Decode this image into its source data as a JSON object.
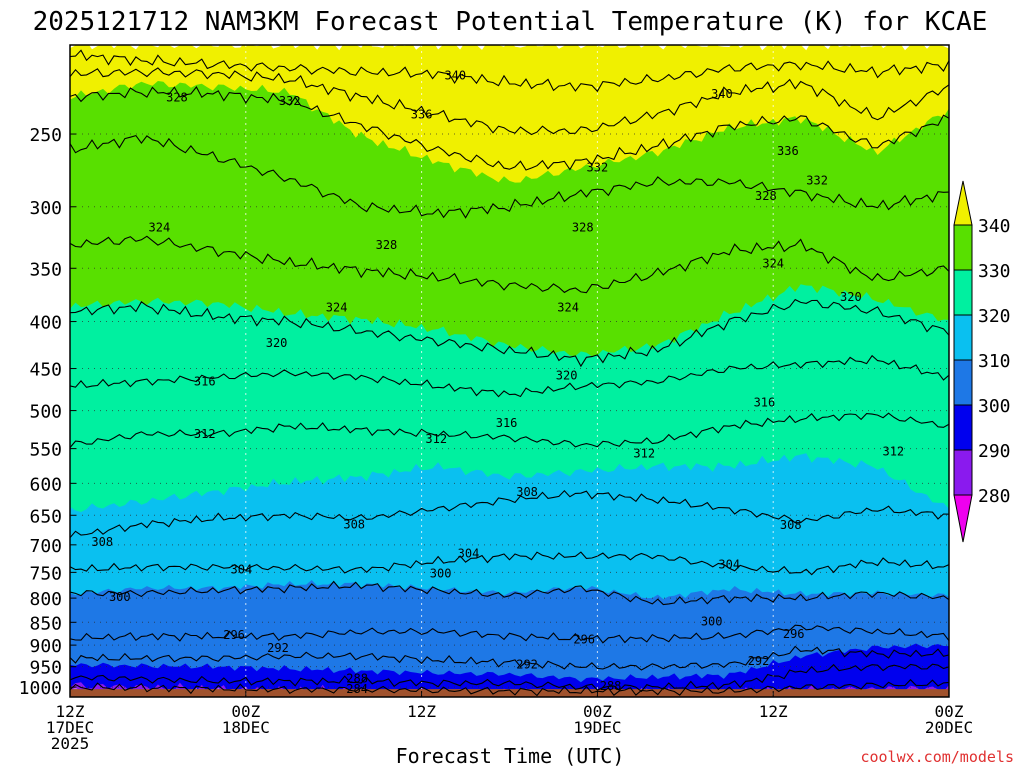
{
  "chart_data": {
    "type": "contour",
    "title": "2025121712 NAM3KM Forecast Potential Temperature (K) for KCAE",
    "xlabel": "Forecast Time (UTC)",
    "ylabel": "",
    "watermark": "coolwx.com/models",
    "x_hours_range": [
      0,
      60
    ],
    "x_ticks": [
      {
        "hour": 0,
        "lines": [
          "12Z",
          "17DEC",
          "2025"
        ]
      },
      {
        "hour": 12,
        "lines": [
          "00Z",
          "18DEC"
        ]
      },
      {
        "hour": 24,
        "lines": [
          "12Z"
        ]
      },
      {
        "hour": 36,
        "lines": [
          "00Z",
          "19DEC"
        ]
      },
      {
        "hour": 48,
        "lines": [
          "12Z"
        ]
      },
      {
        "hour": 60,
        "lines": [
          "00Z",
          "20DEC"
        ]
      }
    ],
    "y_pressure_levels_hpa": [
      250,
      300,
      350,
      400,
      450,
      500,
      550,
      600,
      650,
      700,
      750,
      800,
      850,
      900,
      950,
      1000
    ],
    "y_range_hpa": [
      200,
      1025
    ],
    "colorbar": {
      "levels": [
        280,
        290,
        300,
        310,
        320,
        330,
        340
      ],
      "colors": [
        "#ee00ee",
        "#8a1aee",
        "#0000ee",
        "#1e78e6",
        "#0ac0f0",
        "#00f0a0",
        "#58e000",
        "#f0f000"
      ]
    },
    "fill_bands": [
      {
        "theta": 335,
        "color": "#f0f000",
        "pressure": [
          200,
          200,
          200,
          200,
          200,
          200,
          200,
          200,
          200,
          200,
          200,
          200,
          200
        ]
      },
      {
        "theta": 330,
        "color": "#58e000",
        "pressure": [
          228,
          220,
          222,
          225,
          252,
          268,
          282,
          272,
          262,
          246,
          240,
          262,
          235
        ]
      },
      {
        "theta": 320,
        "color": "#00f0a0",
        "pressure": [
          385,
          380,
          382,
          392,
          398,
          408,
          425,
          435,
          425,
          392,
          365,
          378,
          400
        ]
      },
      {
        "theta": 310,
        "color": "#0ac0f0",
        "pressure": [
          642,
          628,
          612,
          598,
          590,
          575,
          590,
          582,
          575,
          575,
          560,
          575,
          640
        ]
      },
      {
        "theta": 300,
        "color": "#1e78e6",
        "pressure": [
          792,
          780,
          780,
          772,
          772,
          782,
          790,
          778,
          800,
          782,
          792,
          790,
          795
        ]
      },
      {
        "theta": 290,
        "color": "#0000ee",
        "pressure": [
          945,
          948,
          950,
          955,
          960,
          965,
          968,
          980,
          975,
          970,
          925,
          905,
          900
        ]
      },
      {
        "theta": 285,
        "color": "#8a1aee",
        "pressure": [
          995,
          1000,
          1005,
          1008,
          1010,
          1012,
          1012,
          1015,
          1015,
          1012,
          1008,
          1005,
          1002
        ]
      },
      {
        "theta": 280,
        "color": "#c060e6",
        "pressure": [
          1010,
          1012,
          1014,
          1015,
          1016,
          1016,
          1016,
          1016,
          1016,
          1016,
          1016,
          1016,
          1016
        ]
      }
    ],
    "ground": {
      "color": "#a0522d",
      "pressure_top": 1005
    },
    "contour_hours": [
      0,
      5,
      10,
      15,
      20,
      25,
      30,
      35,
      40,
      45,
      50,
      55,
      60
    ],
    "contours": [
      {
        "theta": 340,
        "pressure": [
          205,
          208,
          210,
          212,
          214,
          215,
          220,
          222,
          218,
          212,
          210,
          214,
          210
        ]
      },
      {
        "theta": 336,
        "pressure": [
          215,
          214,
          215,
          218,
          228,
          238,
          248,
          248,
          238,
          225,
          220,
          240,
          222
        ]
      },
      {
        "theta": 332,
        "pressure": [
          228,
          225,
          226,
          230,
          245,
          260,
          272,
          268,
          258,
          245,
          240,
          258,
          240
        ]
      },
      {
        "theta": 328,
        "pressure": [
          260,
          252,
          265,
          280,
          300,
          305,
          300,
          290,
          282,
          282,
          290,
          300,
          290
        ]
      },
      {
        "theta": 324,
        "pressure": [
          330,
          325,
          335,
          345,
          352,
          358,
          365,
          370,
          355,
          335,
          330,
          360,
          350
        ]
      },
      {
        "theta": 320,
        "pressure": [
          390,
          385,
          395,
          400,
          410,
          420,
          430,
          440,
          430,
          400,
          380,
          390,
          410
        ]
      },
      {
        "theta": 316,
        "pressure": [
          470,
          465,
          460,
          455,
          460,
          470,
          480,
          470,
          465,
          450,
          445,
          440,
          460
        ]
      },
      {
        "theta": 312,
        "pressure": [
          545,
          530,
          530,
          520,
          525,
          530,
          535,
          545,
          540,
          520,
          510,
          505,
          520
        ]
      },
      {
        "theta": 308,
        "pressure": [
          685,
          665,
          655,
          650,
          655,
          640,
          625,
          615,
          625,
          640,
          660,
          640,
          650
        ]
      },
      {
        "theta": 304,
        "pressure": [
          745,
          740,
          740,
          742,
          745,
          730,
          720,
          720,
          720,
          740,
          750,
          730,
          740
        ]
      },
      {
        "theta": 300,
        "pressure": [
          790,
          790,
          785,
          780,
          775,
          785,
          795,
          780,
          810,
          800,
          800,
          790,
          800
        ]
      },
      {
        "theta": 296,
        "pressure": [
          885,
          880,
          880,
          880,
          870,
          870,
          880,
          885,
          885,
          880,
          860,
          870,
          880
        ]
      },
      {
        "theta": 292,
        "pressure": [
          930,
          930,
          930,
          925,
          925,
          935,
          940,
          950,
          950,
          945,
          910,
          920,
          920
        ]
      },
      {
        "theta": 288,
        "pressure": [
          975,
          980,
          985,
          985,
          985,
          990,
          990,
          1000,
          1000,
          995,
          960,
          950,
          950
        ]
      },
      {
        "theta": 284,
        "pressure": [
          1000,
          1002,
          1004,
          1006,
          1006,
          1008,
          1010,
          1010,
          1010,
          1010,
          1000,
          995,
          990
        ]
      }
    ],
    "contour_labels": [
      {
        "text": "340",
        "hour": 26.3,
        "pressure": 216
      },
      {
        "text": "340",
        "hour": 44.5,
        "pressure": 226
      },
      {
        "text": "336",
        "hour": 24.0,
        "pressure": 238
      },
      {
        "text": "332",
        "hour": 15.0,
        "pressure": 230
      },
      {
        "text": "328",
        "hour": 7.3,
        "pressure": 228
      },
      {
        "text": "336",
        "hour": 49.0,
        "pressure": 261
      },
      {
        "text": "332",
        "hour": 36.0,
        "pressure": 272
      },
      {
        "text": "332",
        "hour": 51.0,
        "pressure": 281
      },
      {
        "text": "328",
        "hour": 47.5,
        "pressure": 292
      },
      {
        "text": "324",
        "hour": 6.1,
        "pressure": 316
      },
      {
        "text": "328",
        "hour": 21.6,
        "pressure": 330
      },
      {
        "text": "328",
        "hour": 35.0,
        "pressure": 316
      },
      {
        "text": "324",
        "hour": 48.0,
        "pressure": 346
      },
      {
        "text": "320",
        "hour": 53.3,
        "pressure": 376
      },
      {
        "text": "324",
        "hour": 18.2,
        "pressure": 386
      },
      {
        "text": "324",
        "hour": 34.0,
        "pressure": 386
      },
      {
        "text": "320",
        "hour": 14.1,
        "pressure": 422
      },
      {
        "text": "320",
        "hour": 33.9,
        "pressure": 458
      },
      {
        "text": "316",
        "hour": 9.2,
        "pressure": 465
      },
      {
        "text": "316",
        "hour": 47.4,
        "pressure": 490
      },
      {
        "text": "316",
        "hour": 29.8,
        "pressure": 516
      },
      {
        "text": "312",
        "hour": 9.2,
        "pressure": 530
      },
      {
        "text": "312",
        "hour": 25.0,
        "pressure": 537
      },
      {
        "text": "312",
        "hour": 39.2,
        "pressure": 557
      },
      {
        "text": "312",
        "hour": 56.2,
        "pressure": 554
      },
      {
        "text": "308",
        "hour": 31.2,
        "pressure": 613
      },
      {
        "text": "308",
        "hour": 19.4,
        "pressure": 665
      },
      {
        "text": "308",
        "hour": 49.2,
        "pressure": 666
      },
      {
        "text": "308",
        "hour": 2.2,
        "pressure": 695
      },
      {
        "text": "304",
        "hour": 27.2,
        "pressure": 715
      },
      {
        "text": "304",
        "hour": 11.7,
        "pressure": 745
      },
      {
        "text": "300",
        "hour": 25.3,
        "pressure": 752
      },
      {
        "text": "304",
        "hour": 45.0,
        "pressure": 735
      },
      {
        "text": "300",
        "hour": 3.4,
        "pressure": 798
      },
      {
        "text": "300",
        "hour": 43.8,
        "pressure": 848
      },
      {
        "text": "296",
        "hour": 11.2,
        "pressure": 878
      },
      {
        "text": "296",
        "hour": 35.1,
        "pressure": 887
      },
      {
        "text": "296",
        "hour": 49.4,
        "pressure": 875
      },
      {
        "text": "292",
        "hour": 14.2,
        "pressure": 906
      },
      {
        "text": "292",
        "hour": 31.2,
        "pressure": 945
      },
      {
        "text": "292",
        "hour": 47.0,
        "pressure": 937
      },
      {
        "text": "288",
        "hour": 19.6,
        "pressure": 978
      },
      {
        "text": "284",
        "hour": 19.6,
        "pressure": 1005
      },
      {
        "text": "288",
        "hour": 36.9,
        "pressure": 997
      }
    ]
  }
}
